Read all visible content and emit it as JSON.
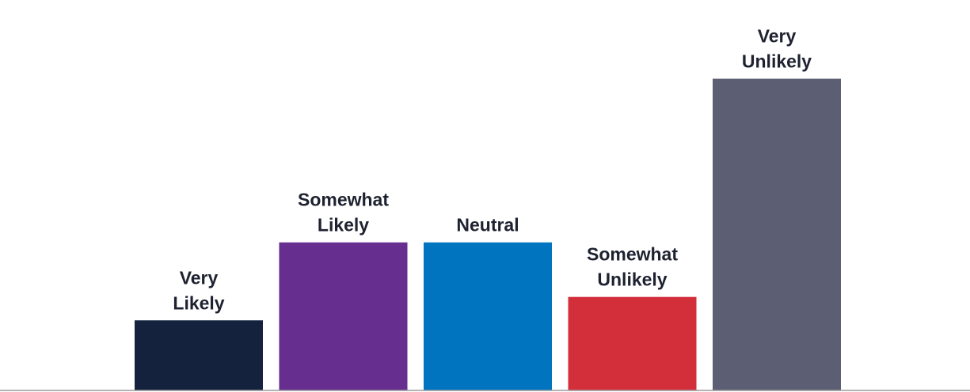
{
  "chart_data": {
    "type": "bar",
    "categories": [
      [
        "Very",
        "Likely"
      ],
      [
        "Somewhat",
        "Likely"
      ],
      [
        "Neutral"
      ],
      [
        "Somewhat",
        "Unlikely"
      ],
      [
        "Very",
        "Unlikely"
      ]
    ],
    "values": [
      18,
      38,
      38,
      24,
      80
    ],
    "colors": [
      "#14223e",
      "#652e8f",
      "#0074be",
      "#d32f3b",
      "#5c5f73"
    ],
    "ylim": [
      0,
      85
    ],
    "grid": false,
    "legend": "none",
    "title": "",
    "xlabel": "",
    "ylabel": ""
  }
}
